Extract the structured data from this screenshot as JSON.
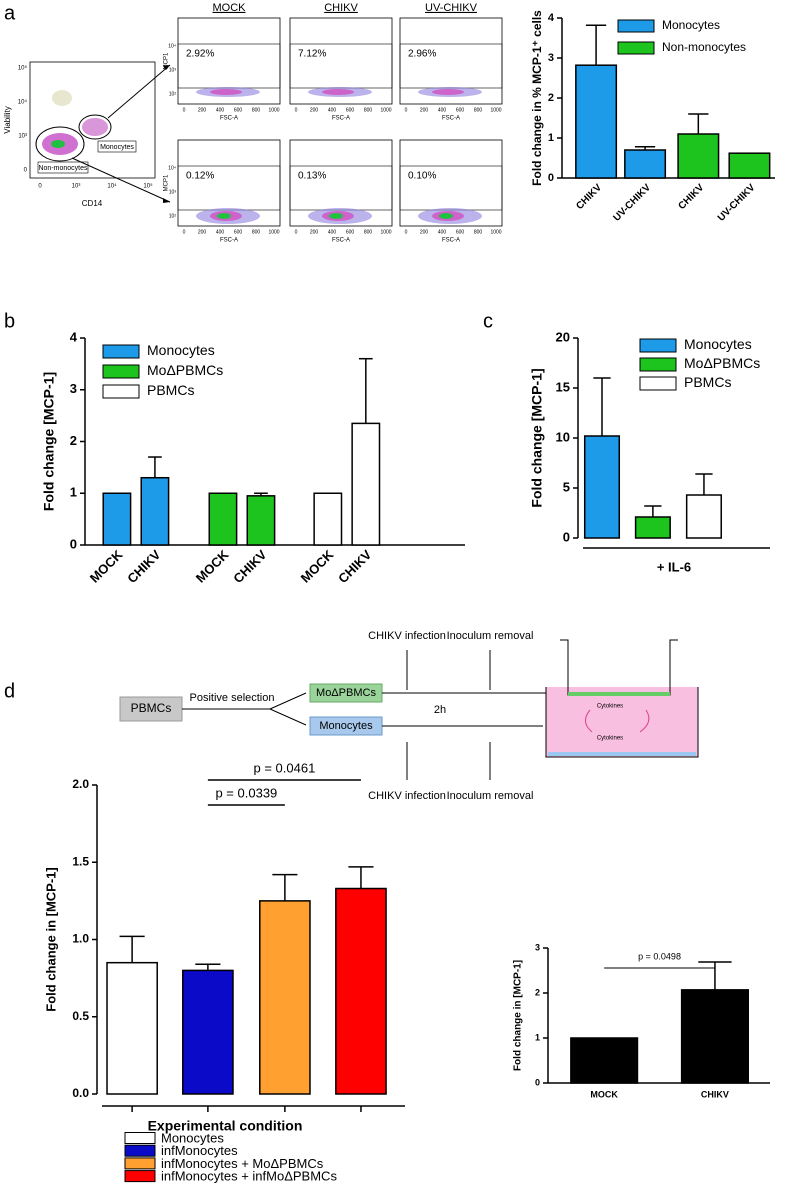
{
  "panels": [
    "a",
    "b",
    "c",
    "d"
  ],
  "flow": {
    "gating": {
      "x_label": "CD14",
      "y_label": "Viability",
      "xticks": [
        "0",
        "10³",
        "10⁴",
        "10⁵"
      ],
      "yticks": [
        "0",
        "10³",
        "10⁴",
        "10⁵"
      ],
      "gates": [
        "Monocytes",
        "Non-monocytes"
      ]
    },
    "columns": [
      "MOCK",
      "CHIKV",
      "UV-CHIKV"
    ],
    "y_label": "MCP1",
    "x_label": "FSC-A",
    "xticks": [
      "0",
      "200",
      "400",
      "600",
      "800",
      "1000"
    ],
    "yticks": [
      "10²",
      "10³",
      "10⁴"
    ],
    "monocytes": [
      "2.92%",
      "7.12%",
      "2.96%"
    ],
    "non_monocytes": [
      "0.12%",
      "0.13%",
      "0.10%"
    ]
  },
  "diagram": {
    "source": "PBMCs",
    "step": "Positive selection",
    "fractions": [
      "MoΔPBMCs",
      "Monocytes"
    ],
    "infection": [
      "CHIKV infection",
      "CHIKV infection"
    ],
    "removal": [
      "Inoculum removal",
      "Inoculum removal"
    ],
    "time": "2h",
    "cytokines": [
      "Cytokines",
      "Cytokines"
    ]
  },
  "chart_data": [
    {
      "type": "bar",
      "y_label": "Fold change in % MCP-1⁺ cells",
      "categories": [
        "CHIKV",
        "UV-CHIKV",
        "CHIKV",
        "UV-CHIKV"
      ],
      "series": [
        {
          "name": "Monocytes",
          "color": "#1e9be8",
          "values": [
            2.82,
            0.7,
            null,
            null
          ],
          "errors": [
            1.0,
            0.08,
            null,
            null
          ]
        },
        {
          "name": "Non-monocytes",
          "color": "#1ec41e",
          "values": [
            null,
            null,
            1.1,
            0.62
          ],
          "errors": [
            null,
            null,
            0.5,
            null
          ]
        }
      ],
      "ylim": [
        0,
        4
      ],
      "yticks": [
        0,
        1,
        2,
        3,
        4
      ],
      "legend": "top-right"
    },
    {
      "type": "bar",
      "y_label": "Fold change [MCP-1]",
      "categories": [
        "MOCK",
        "CHIKV",
        "MOCK",
        "CHIKV",
        "MOCK",
        "CHIKV"
      ],
      "series": [
        {
          "name": "Monocytes",
          "color": "#1e9be8",
          "values": [
            1,
            1.3,
            null,
            null,
            null,
            null
          ],
          "errors": [
            null,
            0.4,
            null,
            null,
            null,
            null
          ]
        },
        {
          "name": "MoΔPBMCs",
          "color": "#1ec41e",
          "values": [
            null,
            null,
            1,
            0.95,
            null,
            null
          ],
          "errors": [
            null,
            null,
            null,
            0.05,
            null,
            null
          ]
        },
        {
          "name": "PBMCs",
          "color": "#ffffff",
          "values": [
            null,
            null,
            null,
            null,
            1,
            2.35
          ],
          "errors": [
            null,
            null,
            null,
            null,
            null,
            1.25
          ]
        }
      ],
      "ylim": [
        0,
        4
      ],
      "yticks": [
        0,
        1,
        2,
        3,
        4
      ],
      "legend": "top-left"
    },
    {
      "type": "bar",
      "y_label": "Fold change [MCP-1]",
      "x_label": "+ IL-6",
      "series": [
        {
          "name": "Monocytes",
          "color": "#1e9be8",
          "values": [
            10.2
          ],
          "errors": [
            5.8
          ]
        },
        {
          "name": "MoΔPBMCs",
          "color": "#1ec41e",
          "values": [
            2.1
          ],
          "errors": [
            1.1
          ]
        },
        {
          "name": "PBMCs",
          "color": "#ffffff",
          "values": [
            4.3
          ],
          "errors": [
            2.1
          ]
        }
      ],
      "ylim": [
        0,
        20
      ],
      "yticks": [
        0,
        5,
        10,
        15,
        20
      ],
      "legend": "top-right"
    },
    {
      "type": "bar",
      "y_label": "Fold change in [MCP-1]",
      "x_label": "Experimental condition",
      "categories": [
        "Monocytes",
        "infMonocytes",
        "infMonocytes + MoΔPBMCs",
        "infMonocytes + infMoΔPBMCs"
      ],
      "colors": [
        "#ffffff",
        "#0a0ac8",
        "#ffa030",
        "#ff0000"
      ],
      "values": [
        0.85,
        0.8,
        1.25,
        1.33
      ],
      "errors": [
        0.17,
        0.04,
        0.17,
        0.14
      ],
      "ylim": [
        0,
        2
      ],
      "yticks": [
        {
          "value": 0,
          "label": "0.0"
        },
        {
          "value": 0.5,
          "label": "0.5"
        },
        {
          "value": 1,
          "label": "1.0"
        },
        {
          "value": 1.5,
          "label": "1.5"
        },
        {
          "value": 2,
          "label": "2.0"
        }
      ],
      "annotations": [
        "p = 0.0339",
        "p = 0.0461"
      ],
      "legend": "bottom"
    },
    {
      "type": "bar",
      "y_label": "Fold change in [MCP-1]",
      "categories": [
        "MOCK",
        "CHIKV"
      ],
      "color": "#000000",
      "values": [
        1,
        2.07
      ],
      "errors": [
        null,
        0.62
      ],
      "ylim": [
        0,
        3
      ],
      "yticks": [
        0,
        1,
        2,
        3
      ],
      "annotations": [
        "p = 0.0498"
      ]
    }
  ]
}
